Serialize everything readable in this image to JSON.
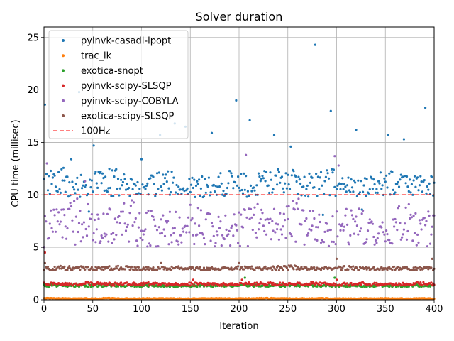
{
  "chart_data": {
    "type": "scatter",
    "title": "Solver duration",
    "xlabel": "Iteration",
    "ylabel": "CPU time (millisec)",
    "xlim": [
      0,
      400
    ],
    "ylim": [
      0,
      26
    ],
    "xticks": [
      0,
      50,
      100,
      150,
      200,
      250,
      300,
      350,
      400
    ],
    "yticks": [
      0,
      5,
      10,
      15,
      20,
      25
    ],
    "grid": true,
    "legend_position": "upper-left",
    "series": [
      {
        "name": "pyinvk-casadi-ipopt",
        "color": "#1f77b4",
        "base": 11.0,
        "jitter": 1.6,
        "outliers": [
          [
            1,
            18.6
          ],
          [
            28,
            13.4
          ],
          [
            36,
            19.8
          ],
          [
            46,
            12.6
          ],
          [
            51,
            14.7
          ],
          [
            100,
            13.4
          ],
          [
            119,
            15.7
          ],
          [
            134,
            16.8
          ],
          [
            145,
            16.5
          ],
          [
            172,
            15.9
          ],
          [
            197,
            19.0
          ],
          [
            211,
            17.1
          ],
          [
            236,
            15.7
          ],
          [
            253,
            14.6
          ],
          [
            278,
            24.3
          ],
          [
            294,
            18.0
          ],
          [
            320,
            16.2
          ],
          [
            353,
            15.7
          ],
          [
            369,
            15.3
          ],
          [
            391,
            18.3
          ],
          [
            46,
            8.4
          ],
          [
            286,
            8.1
          ],
          [
            326,
            8.6
          ]
        ]
      },
      {
        "name": "trac_ik",
        "color": "#ff7f0e",
        "base": 0.12,
        "jitter": 0.05,
        "outliers": []
      },
      {
        "name": "exotica-snopt",
        "color": "#2ca02c",
        "base": 1.35,
        "jitter": 0.15,
        "outliers": [
          [
            206,
            2.1
          ],
          [
            298,
            2.1
          ]
        ]
      },
      {
        "name": "pyinvk-scipy-SLSQP",
        "color": "#d62728",
        "base": 1.5,
        "jitter": 0.2,
        "outliers": [
          [
            1,
            4.5
          ],
          [
            153,
            1.9
          ],
          [
            203,
            1.9
          ],
          [
            300,
            1.9
          ]
        ]
      },
      {
        "name": "pyinvk-scipy-COBYLA",
        "color": "#9467bd",
        "base": 7.0,
        "jitter": 2.6,
        "outliers": [
          [
            3,
            13.0
          ],
          [
            42,
            11.3
          ],
          [
            207,
            13.8
          ],
          [
            298,
            13.7
          ],
          [
            302,
            12.8
          ]
        ]
      },
      {
        "name": "exotica-scipy-SLSQP",
        "color": "#8c564b",
        "base": 3.0,
        "jitter": 0.25,
        "outliers": [
          [
            1,
            3.5
          ],
          [
            120,
            3.5
          ],
          [
            200,
            3.5
          ],
          [
            300,
            3.9
          ],
          [
            398,
            3.9
          ]
        ]
      },
      {
        "name": "100Hz",
        "type": "hline",
        "value": 10,
        "color": "#ff0000",
        "dash": true
      }
    ]
  }
}
